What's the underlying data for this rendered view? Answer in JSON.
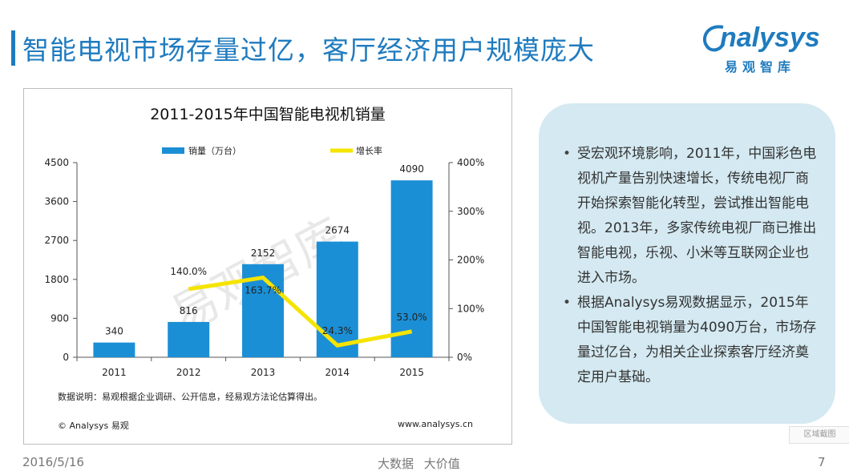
{
  "slide": {
    "title": "智能电视市场存量过亿，客厅经济用户规模庞大",
    "logo_text": "nalysys",
    "logo_sub": "易观智库",
    "footer_date": "2016/5/16",
    "footer_slogan": "大数据 大价值",
    "page_number": "7",
    "corner_tag": "区域截图"
  },
  "chart_data": {
    "type": "bar+line",
    "title": "2011-2015年中国智能电视机销量",
    "categories": [
      "2011",
      "2012",
      "2013",
      "2014",
      "2015"
    ],
    "series": [
      {
        "name": "销量（万台）",
        "type": "bar",
        "axis": "left",
        "color": "#1b8fd6",
        "values": [
          340,
          816,
          2152,
          2674,
          4090
        ],
        "labels": [
          "340",
          "816",
          "2152",
          "2674",
          "4090"
        ]
      },
      {
        "name": "增长率",
        "type": "line",
        "axis": "right",
        "color": "#f5e400",
        "values": [
          null,
          140.0,
          163.7,
          24.3,
          53.0
        ],
        "labels": [
          "",
          "140.0%",
          "163.7%",
          "24.3%",
          "53.0%"
        ]
      }
    ],
    "y_left": {
      "min": 0,
      "max": 4500,
      "ticks": [
        0,
        900,
        1800,
        2700,
        3600,
        4500
      ],
      "tick_labels": [
        "0",
        "900",
        "1800",
        "2700",
        "3600",
        "4500"
      ]
    },
    "y_right": {
      "min": 0,
      "max": 400,
      "ticks": [
        0,
        100,
        200,
        300,
        400
      ],
      "tick_labels": [
        "0%",
        "100%",
        "200%",
        "300%",
        "400%"
      ]
    },
    "legend_position": "top",
    "grid": false,
    "note": "数据说明：易观根据企业调研、公开信息，经易观方法论估算得出。",
    "copyright": "© Analysys 易观",
    "source_url": "www.analysys.cn",
    "watermark": "易观智库"
  },
  "info": {
    "bullets": [
      "受宏观环境影响，2011年，中国彩色电视机产量告别快速增长，传统电视厂商开始探索智能化转型，尝试推出智能电视。2013年，多家传统电视厂商已推出智能电视，乐视、小米等互联网企业也进入市场。",
      "根据Analysys易观数据显示，2015年中国智能电视销量为4090万台，市场存量过亿台，为相关企业探索客厅经济奠定用户基础。"
    ]
  }
}
